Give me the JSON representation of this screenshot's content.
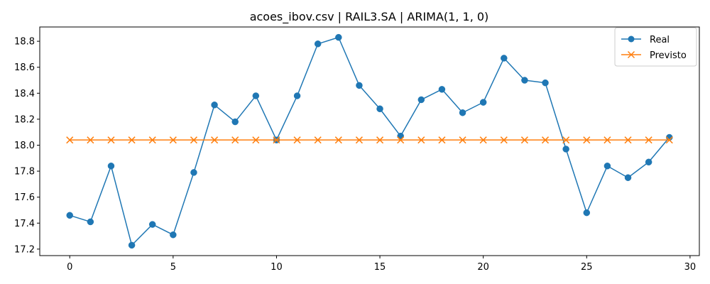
{
  "chart_data": {
    "type": "line",
    "title": "acoes_ibov.csv | RAIL3.SA | ARIMA(1, 1, 0)",
    "xlabel": "",
    "ylabel": "",
    "x": [
      0,
      1,
      2,
      3,
      4,
      5,
      6,
      7,
      8,
      9,
      10,
      11,
      12,
      13,
      14,
      15,
      16,
      17,
      18,
      19,
      20,
      21,
      22,
      23,
      24,
      25,
      26,
      27,
      28,
      29
    ],
    "series": [
      {
        "name": "Real",
        "color": "#1f77b4",
        "marker": "circle",
        "values": [
          17.46,
          17.41,
          17.84,
          17.23,
          17.39,
          17.31,
          17.79,
          18.31,
          18.18,
          18.38,
          18.04,
          18.38,
          18.78,
          18.83,
          18.46,
          18.28,
          18.07,
          18.35,
          18.43,
          18.25,
          18.33,
          18.67,
          18.5,
          18.48,
          17.97,
          17.48,
          17.84,
          17.75,
          17.87,
          18.06
        ]
      },
      {
        "name": "Previsto",
        "color": "#ff7f0e",
        "marker": "x",
        "values": [
          18.04,
          18.04,
          18.04,
          18.04,
          18.04,
          18.04,
          18.04,
          18.04,
          18.04,
          18.04,
          18.04,
          18.04,
          18.04,
          18.04,
          18.04,
          18.04,
          18.04,
          18.04,
          18.04,
          18.04,
          18.04,
          18.04,
          18.04,
          18.04,
          18.04,
          18.04,
          18.04,
          18.04,
          18.04,
          18.04
        ]
      }
    ],
    "xlim": [
      -1.45,
      30.45
    ],
    "ylim": [
      17.15,
      18.91
    ],
    "xticks": [
      0,
      5,
      10,
      15,
      20,
      25,
      30
    ],
    "xtick_labels": [
      "0",
      "5",
      "10",
      "15",
      "20",
      "25",
      "30"
    ],
    "yticks": [
      17.2,
      17.4,
      17.6,
      17.8,
      18.0,
      18.2,
      18.4,
      18.6,
      18.8
    ],
    "ytick_labels": [
      "17.2",
      "17.4",
      "17.6",
      "17.8",
      "18.0",
      "18.2",
      "18.4",
      "18.6",
      "18.8"
    ],
    "grid": false,
    "legend_position": "top-right"
  }
}
